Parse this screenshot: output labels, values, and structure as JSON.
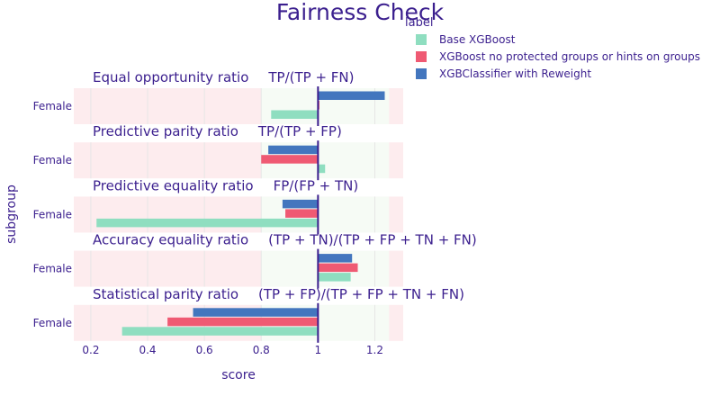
{
  "chart_data": {
    "type": "bar",
    "orientation": "horizontal",
    "title": "Fairness Check",
    "xlabel": "score",
    "ylabel": "subgroup",
    "xlim": [
      0.14,
      1.3
    ],
    "x_ticks": [
      0.2,
      0.4,
      0.6,
      0.8,
      1,
      1.2
    ],
    "x_tick_labels": [
      "0.2",
      "0.4",
      "0.6",
      "0.8",
      "1",
      "1.2"
    ],
    "reference_value": 1,
    "fair_range": [
      0.8,
      1.25
    ],
    "legend": {
      "title": "label",
      "placement": "top-right",
      "entries": [
        "Base XGBoost",
        "XGBoost no protected groups or hints on groups",
        "XGBClassifier with Reweight"
      ]
    },
    "colors": {
      "Base XGBoost": "#8fdec0",
      "XGBoost no protected groups or hints on groups": "#ef5a73",
      "XGBClassifier with Reweight": "#4376be",
      "unfair_band": "#fdecee",
      "fair_band": "#f6fbf5",
      "text": "#3b1f8e",
      "reference_line": "#3b1f8e"
    },
    "panels": [
      {
        "metric": "Equal opportunity ratio",
        "formula": "TP/(TP + FN)",
        "category": "Female",
        "series": [
          {
            "name": "Base XGBoost",
            "value": 0.835
          },
          {
            "name": "XGBoost no protected groups or hints on groups",
            "value": 1.005
          },
          {
            "name": "XGBClassifier with Reweight",
            "value": 1.235
          }
        ]
      },
      {
        "metric": "Predictive parity ratio",
        "formula": "TP/(TP + FP)",
        "category": "Female",
        "series": [
          {
            "name": "Base XGBoost",
            "value": 1.025
          },
          {
            "name": "XGBoost no protected groups or hints on groups",
            "value": 0.8
          },
          {
            "name": "XGBClassifier with Reweight",
            "value": 0.825
          }
        ]
      },
      {
        "metric": "Predictive equality ratio",
        "formula": "FP/(FP + TN)",
        "category": "Female",
        "series": [
          {
            "name": "Base XGBoost",
            "value": 0.22
          },
          {
            "name": "XGBoost no protected groups or hints on groups",
            "value": 0.885
          },
          {
            "name": "XGBClassifier with Reweight",
            "value": 0.875
          }
        ]
      },
      {
        "metric": "Accuracy equality ratio",
        "formula": "(TP + TN)/(TP + FP + TN + FN)",
        "category": "Female",
        "series": [
          {
            "name": "Base XGBoost",
            "value": 1.115
          },
          {
            "name": "XGBoost no protected groups or hints on groups",
            "value": 1.14
          },
          {
            "name": "XGBClassifier with Reweight",
            "value": 1.12
          }
        ]
      },
      {
        "metric": "Statistical parity ratio",
        "formula": "(TP + FP)/(TP + FP + TN + FN)",
        "category": "Female",
        "series": [
          {
            "name": "Base XGBoost",
            "value": 0.31
          },
          {
            "name": "XGBoost no protected groups or hints on groups",
            "value": 0.47
          },
          {
            "name": "XGBClassifier with Reweight",
            "value": 0.56
          }
        ]
      }
    ]
  }
}
